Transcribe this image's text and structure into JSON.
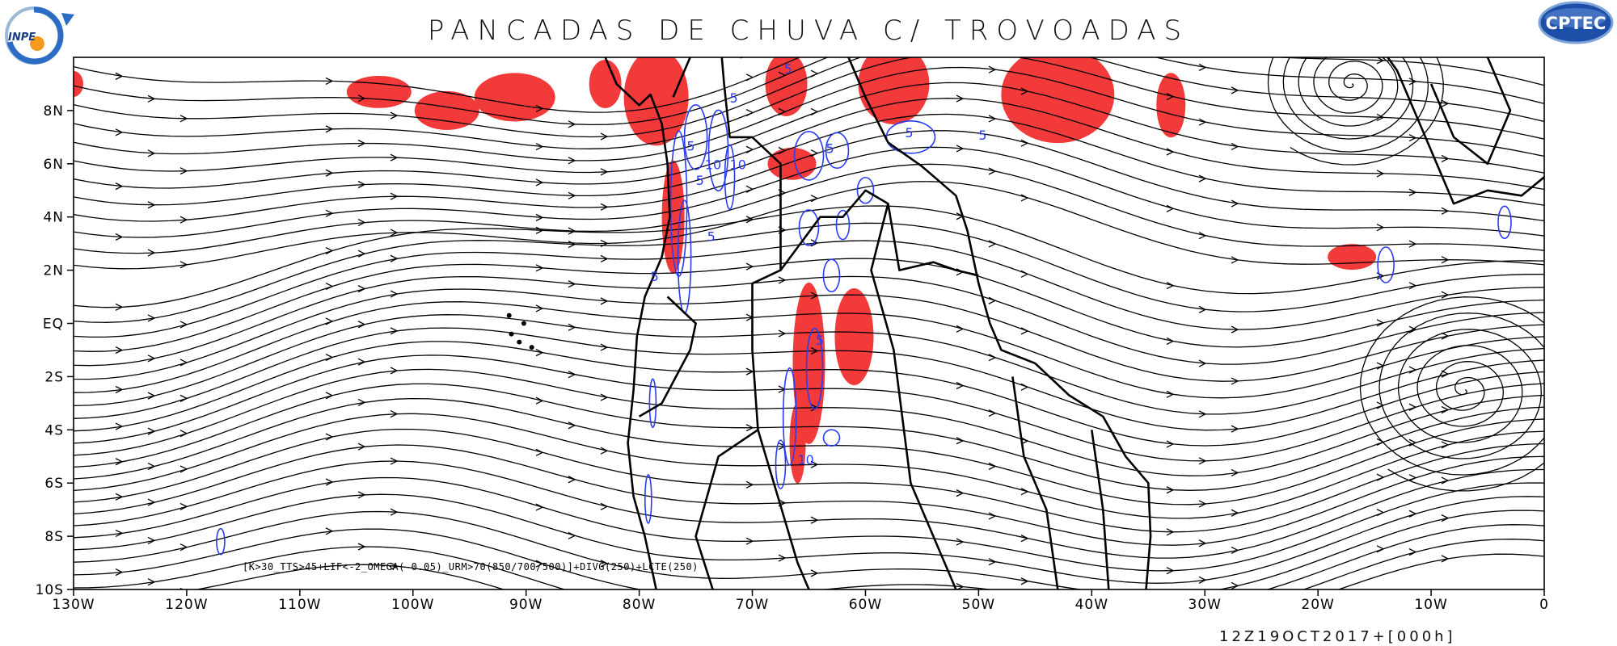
{
  "title": "PANCADAS DE CHUVA C/ TROVOADAS",
  "logos": {
    "left": {
      "text": "INPE",
      "icon": "inpe-logo-icon"
    },
    "right": {
      "text": "CPTEC",
      "icon": "cptec-logo-icon"
    }
  },
  "map": {
    "projection": "lat-lon",
    "lon_range": [
      -130,
      0
    ],
    "lat_range": [
      -10,
      10
    ],
    "x_ticks": [
      "130W",
      "120W",
      "110W",
      "100W",
      "90W",
      "80W",
      "70W",
      "60W",
      "50W",
      "40W",
      "30W",
      "20W",
      "10W",
      "0"
    ],
    "y_ticks": [
      "10S",
      "8S",
      "6S",
      "4S",
      "2S",
      "EQ",
      "2N",
      "4N",
      "6N",
      "8N"
    ],
    "layers": [
      "streamlines",
      "coastlines",
      "blue-contours",
      "red-shading"
    ],
    "colors": {
      "streamline": "#000000",
      "contour": "#2a3cf0",
      "shading": "#f23a3a",
      "coast": "#000000"
    },
    "contour_labels": [
      "5",
      "5",
      "5",
      "5",
      "5",
      "5",
      "5",
      "5",
      "5",
      "5",
      "10",
      "10",
      "10"
    ]
  },
  "formula": "[K>30_TTS>45+LIF<-2_OMEGA(-0.05)_URM>70(850/700/500)]+DIVG(250)+LCTE(250)",
  "timestamp": "12Z19OCT2017+[000h]"
}
